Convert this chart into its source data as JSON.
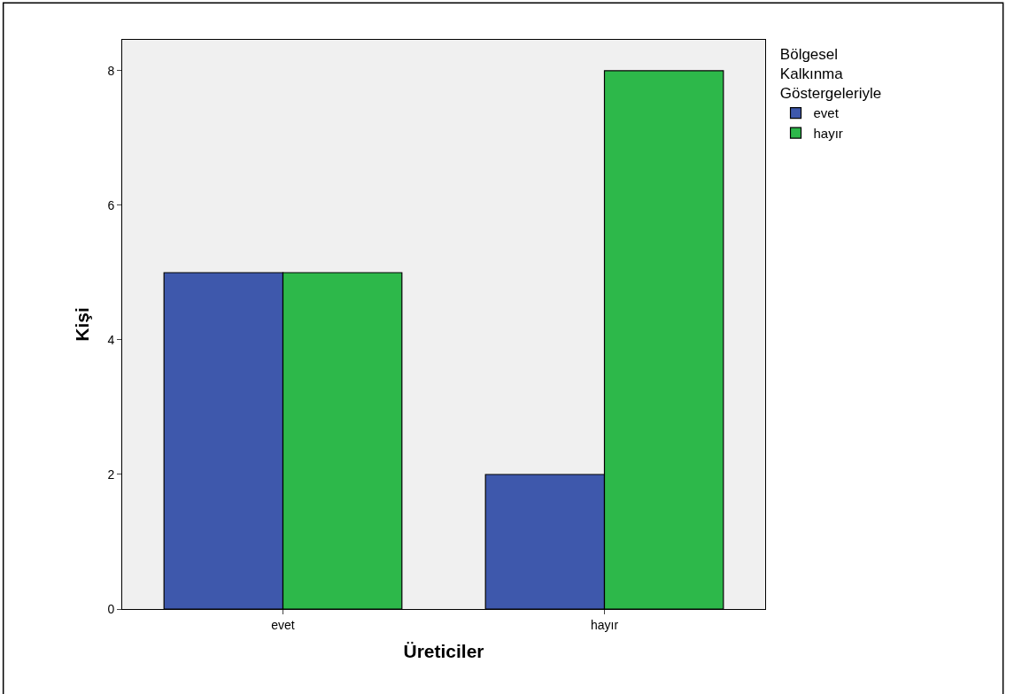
{
  "chart_data": {
    "type": "bar",
    "xlabel": "Üreticiler",
    "ylabel": "Kişi",
    "legend_title": "Bölgesel\nKalkınma\nGöstergeleriyle",
    "categories": [
      "evet",
      "hayır"
    ],
    "series": [
      {
        "name": "evet",
        "color": "#3e58ac",
        "values": [
          5,
          2
        ]
      },
      {
        "name": "hayır",
        "color": "#2db84a",
        "values": [
          5,
          8
        ]
      }
    ],
    "ylim": [
      0,
      8.46
    ],
    "yticks": [
      0,
      2,
      4,
      6,
      8
    ],
    "grid": false,
    "legend": "top right"
  }
}
